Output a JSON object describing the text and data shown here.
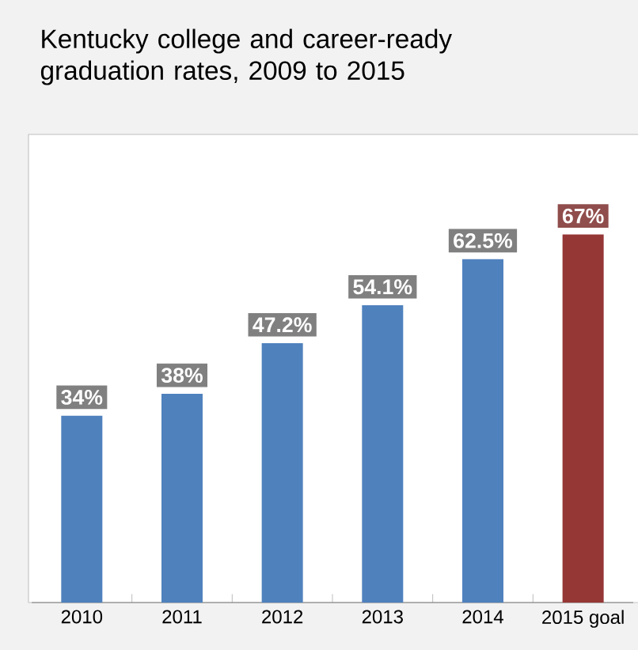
{
  "chart_data": {
    "type": "bar",
    "title": "Kentucky college and career-ready graduation rates, 2009 to 2015",
    "categories": [
      "2010",
      "2011",
      "2012",
      "2013",
      "2014",
      "2015 goal"
    ],
    "values": [
      34,
      38,
      47.2,
      54.1,
      62.5,
      67
    ],
    "colors": [
      "#4f81bd",
      "#4f81bd",
      "#4f81bd",
      "#4f81bd",
      "#4f81bd",
      "#953735"
    ],
    "value_labels": [
      "34%",
      "38%",
      "47.2%",
      "54.1%",
      "62.5%",
      "67%"
    ]
  }
}
